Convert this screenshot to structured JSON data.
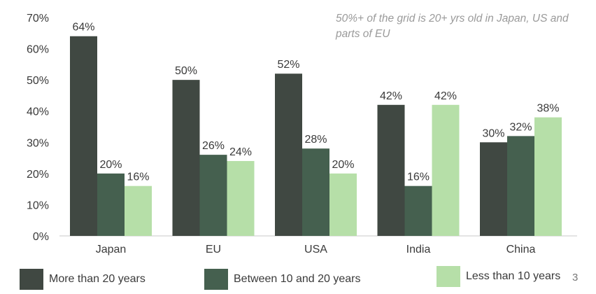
{
  "chart_data": {
    "type": "bar",
    "title": "",
    "annotation": "50%+ of the grid is 20+ yrs old in Japan, US and parts of EU",
    "categories": [
      "Japan",
      "EU",
      "USA",
      "India",
      "China"
    ],
    "series": [
      {
        "name": "More than 20 years",
        "color": "#404842",
        "values": [
          64,
          50,
          52,
          42,
          30
        ],
        "labels": [
          "64%",
          "50%",
          "52%",
          "42%",
          "30%"
        ]
      },
      {
        "name": "Between 10 and 20 years",
        "color": "#45604f",
        "values": [
          20,
          26,
          28,
          16,
          32
        ],
        "labels": [
          "20%",
          "26%",
          "28%",
          "16%",
          "32%"
        ]
      },
      {
        "name": "Less than 10 years",
        "color": "#b6dfa8",
        "values": [
          16,
          24,
          20,
          42,
          38
        ],
        "labels": [
          "16%",
          "24%",
          "20%",
          "42%",
          "38%"
        ]
      }
    ],
    "ylim": [
      0,
      70
    ],
    "yticks": [
      0,
      10,
      20,
      30,
      40,
      50,
      60,
      70
    ],
    "ytick_labels": [
      "0%",
      "10%",
      "20%",
      "30%",
      "40%",
      "50%",
      "60%",
      "70%"
    ],
    "xlabel": "",
    "ylabel": "",
    "grid": false,
    "legend_position": "bottom"
  },
  "page_number": "3"
}
